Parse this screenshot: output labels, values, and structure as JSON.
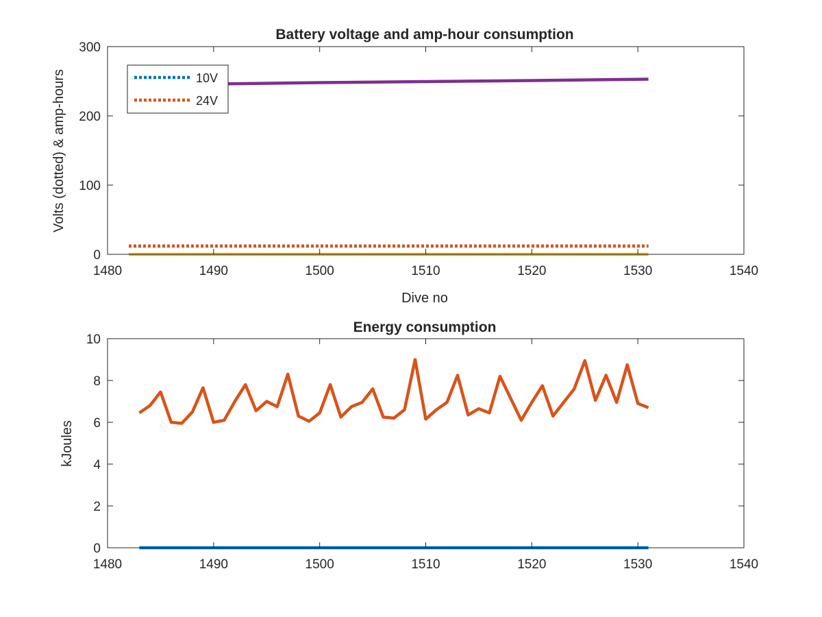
{
  "chart_data": [
    {
      "type": "line",
      "title": "Battery voltage and amp-hour consumption",
      "xlabel": "Dive no",
      "ylabel": "Volts (dotted) & amp-hours",
      "xlim": [
        1480,
        1540
      ],
      "ylim": [
        0,
        300
      ],
      "xticks": [
        "1480",
        "1490",
        "1500",
        "1510",
        "1520",
        "1530",
        "1540"
      ],
      "yticks": [
        "0",
        "100",
        "200",
        "300"
      ],
      "legend_position": "top-left",
      "series": [
        {
          "name": "10V",
          "color": "#0072BD",
          "style": "dotted",
          "legend": true,
          "x": [
            1482,
            1531
          ],
          "y": [
            12,
            12
          ]
        },
        {
          "name": "24V",
          "color": "#D95319",
          "style": "dotted",
          "legend": true,
          "x": [
            1482,
            1531
          ],
          "y": [
            12,
            12
          ]
        },
        {
          "color": "#EDB120",
          "style": "solid",
          "legend": false,
          "x": [
            1482,
            1531
          ],
          "y": [
            0,
            0
          ]
        },
        {
          "color": "#7E2F8E",
          "style": "solid",
          "legend": false,
          "x": [
            1482,
            1490,
            1500,
            1510,
            1520,
            1531
          ],
          "y": [
            245,
            246,
            248,
            249.5,
            251,
            253
          ]
        }
      ]
    },
    {
      "type": "line",
      "title": "Energy consumption",
      "xlabel": "",
      "ylabel": "kJoules",
      "xlim": [
        1480,
        1540
      ],
      "ylim": [
        0,
        10
      ],
      "xticks": [
        "1480",
        "1490",
        "1500",
        "1510",
        "1520",
        "1530",
        "1540"
      ],
      "yticks": [
        "0",
        "2",
        "4",
        "6",
        "8",
        "10"
      ],
      "series": [
        {
          "color": "#0072BD",
          "style": "solid",
          "x": [
            1483,
            1531
          ],
          "y": [
            0,
            0
          ]
        },
        {
          "color": "#D95319",
          "style": "solid",
          "x": [
            1483,
            1484,
            1485,
            1486,
            1487,
            1488,
            1489,
            1490,
            1491,
            1492,
            1493,
            1494,
            1495,
            1496,
            1497,
            1498,
            1499,
            1500,
            1501,
            1502,
            1503,
            1504,
            1505,
            1506,
            1507,
            1508,
            1509,
            1510,
            1511,
            1512,
            1513,
            1514,
            1515,
            1516,
            1517,
            1518,
            1519,
            1520,
            1521,
            1522,
            1523,
            1524,
            1525,
            1526,
            1527,
            1528,
            1529,
            1530,
            1531
          ],
          "y": [
            6.45,
            6.8,
            7.45,
            6.0,
            5.95,
            6.5,
            7.65,
            6.0,
            6.1,
            7.0,
            7.8,
            6.55,
            7.0,
            6.75,
            8.3,
            6.3,
            6.05,
            6.45,
            7.8,
            6.25,
            6.75,
            6.95,
            7.6,
            6.25,
            6.2,
            6.6,
            9.0,
            6.15,
            6.6,
            6.95,
            8.25,
            6.35,
            6.65,
            6.45,
            8.2,
            7.15,
            6.1,
            6.95,
            7.75,
            6.3,
            6.95,
            7.6,
            8.95,
            7.05,
            8.25,
            6.95,
            8.75,
            6.9,
            6.7
          ]
        }
      ]
    }
  ]
}
